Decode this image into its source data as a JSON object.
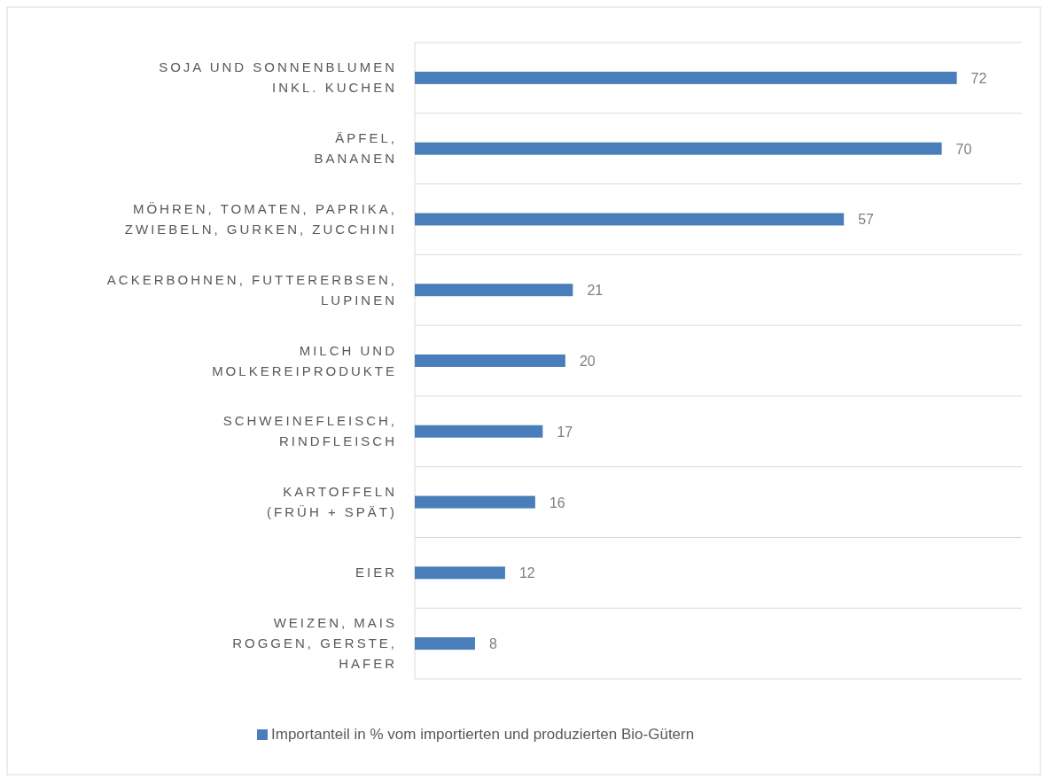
{
  "chart_data": {
    "type": "bar",
    "orientation": "horizontal",
    "categories": [
      "SOJA UND SONNENBLUMEN\nINKL. KUCHEN",
      "ÄPFEL,\nBANANEN",
      "MÖHREN, TOMATEN, PAPRIKA,\nZWIEBELN, GURKEN, ZUCCHINI",
      "ACKERBOHNEN, FUTTERERBSEN,\nLUPINEN",
      "MILCH UND\nMOLKEREIPRODUKTE",
      "SCHWEINEFLEISCH,\nRINDFLEISCH",
      "KARTOFFELN\n(FRÜH + SPÄT)",
      "EIER",
      "WEIZEN, MAIS\nROGGEN, GERSTE,\nHAFER"
    ],
    "series": [
      {
        "name": "Importanteil in % vom importierten und produzierten Bio-Gütern",
        "color": "#4a7ebb",
        "values": [
          72,
          70,
          57,
          21,
          20,
          17,
          16,
          12,
          8
        ]
      }
    ],
    "data_labels": true,
    "grid": "y",
    "legend": "bottom"
  }
}
